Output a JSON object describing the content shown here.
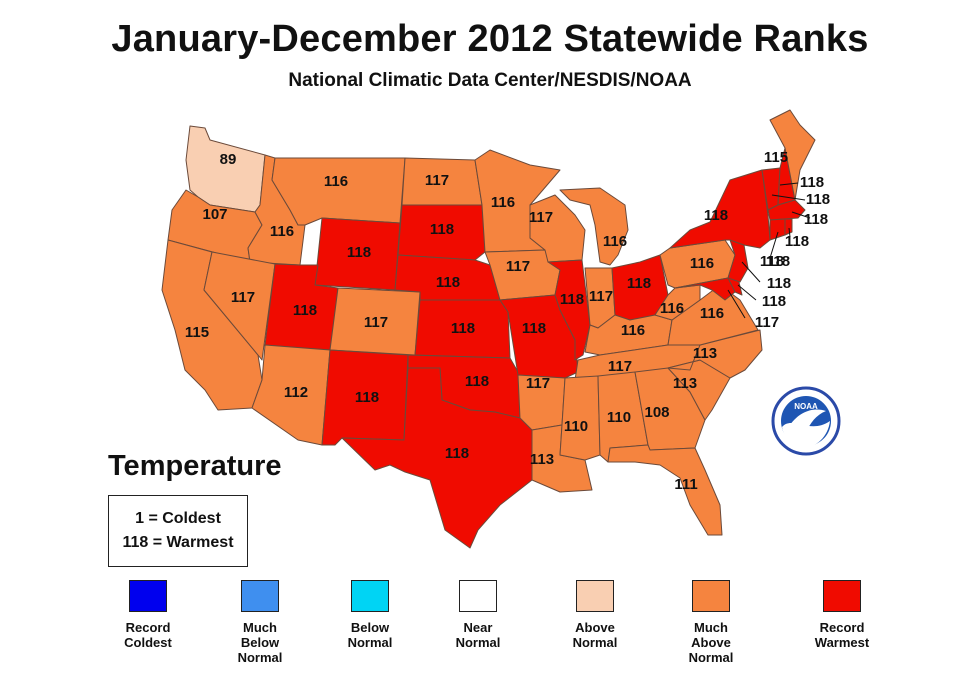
{
  "title": "January-December 2012 Statewide Ranks",
  "subtitle": "National Climatic Data Center/NESDIS/NOAA",
  "legend_title": "Temperature",
  "key": {
    "line1": "1 = Coldest",
    "line2": "118 = Warmest"
  },
  "colors": {
    "record_coldest": "#0000ee",
    "much_below_normal": "#3f8fef",
    "below_normal": "#00d4f4",
    "near_normal": "#ffffff",
    "above_normal": "#f9cfb2",
    "much_above_normal": "#f5843f",
    "record_warmest": "#f00b00"
  },
  "legend": [
    {
      "label": "Record\nColdest",
      "color": "#0000ee"
    },
    {
      "label": "Much\nBelow\nNormal",
      "color": "#3f8fef"
    },
    {
      "label": "Below\nNormal",
      "color": "#00d4f4"
    },
    {
      "label": "Near\nNormal",
      "color": "#ffffff"
    },
    {
      "label": "Above\nNormal",
      "color": "#f9cfb2"
    },
    {
      "label": "Much\nAbove\nNormal",
      "color": "#f5843f"
    },
    {
      "label": "Record\nWarmest",
      "color": "#f00b00"
    }
  ],
  "logo": {
    "text": "NOAA",
    "icon": "noaa-logo-icon"
  },
  "states": [
    {
      "id": "WA",
      "rank": "89",
      "category": "above_normal"
    },
    {
      "id": "OR",
      "rank": "107",
      "category": "much_above_normal"
    },
    {
      "id": "CA",
      "rank": "115",
      "category": "much_above_normal"
    },
    {
      "id": "ID",
      "rank": "116",
      "category": "much_above_normal"
    },
    {
      "id": "NV",
      "rank": "117",
      "category": "much_above_normal"
    },
    {
      "id": "MT",
      "rank": "116",
      "category": "much_above_normal"
    },
    {
      "id": "WY",
      "rank": "118",
      "category": "record_warmest"
    },
    {
      "id": "UT",
      "rank": "118",
      "category": "record_warmest"
    },
    {
      "id": "CO",
      "rank": "117",
      "category": "much_above_normal"
    },
    {
      "id": "AZ",
      "rank": "112",
      "category": "much_above_normal"
    },
    {
      "id": "NM",
      "rank": "118",
      "category": "record_warmest"
    },
    {
      "id": "ND",
      "rank": "117",
      "category": "much_above_normal"
    },
    {
      "id": "SD",
      "rank": "118",
      "category": "record_warmest"
    },
    {
      "id": "NE",
      "rank": "118",
      "category": "record_warmest"
    },
    {
      "id": "KS",
      "rank": "118",
      "category": "record_warmest"
    },
    {
      "id": "OK",
      "rank": "118",
      "category": "record_warmest"
    },
    {
      "id": "TX",
      "rank": "118",
      "category": "record_warmest"
    },
    {
      "id": "MN",
      "rank": "116",
      "category": "much_above_normal"
    },
    {
      "id": "IA",
      "rank": "117",
      "category": "much_above_normal"
    },
    {
      "id": "MO",
      "rank": "118",
      "category": "record_warmest"
    },
    {
      "id": "AR",
      "rank": "117",
      "category": "much_above_normal"
    },
    {
      "id": "LA",
      "rank": "113",
      "category": "much_above_normal"
    },
    {
      "id": "WI",
      "rank": "117",
      "category": "much_above_normal"
    },
    {
      "id": "IL",
      "rank": "118",
      "category": "record_warmest"
    },
    {
      "id": "MI",
      "rank": "116",
      "category": "much_above_normal"
    },
    {
      "id": "IN",
      "rank": "117",
      "category": "much_above_normal"
    },
    {
      "id": "OH",
      "rank": "118",
      "category": "record_warmest"
    },
    {
      "id": "KY",
      "rank": "116",
      "category": "much_above_normal"
    },
    {
      "id": "TN",
      "rank": "117",
      "category": "much_above_normal"
    },
    {
      "id": "MS",
      "rank": "110",
      "category": "much_above_normal"
    },
    {
      "id": "AL",
      "rank": "110",
      "category": "much_above_normal"
    },
    {
      "id": "GA",
      "rank": "108",
      "category": "much_above_normal"
    },
    {
      "id": "FL",
      "rank": "111",
      "category": "much_above_normal"
    },
    {
      "id": "SC",
      "rank": "113",
      "category": "much_above_normal"
    },
    {
      "id": "NC",
      "rank": "113",
      "category": "much_above_normal"
    },
    {
      "id": "VA",
      "rank": "116",
      "category": "much_above_normal"
    },
    {
      "id": "WV",
      "rank": "116",
      "category": "much_above_normal"
    },
    {
      "id": "PA",
      "rank": "116",
      "category": "much_above_normal"
    },
    {
      "id": "NY",
      "rank": "118",
      "category": "record_warmest"
    },
    {
      "id": "ME",
      "rank": "115",
      "category": "much_above_normal"
    },
    {
      "id": "NH",
      "rank": "118",
      "category": "record_warmest"
    },
    {
      "id": "VT",
      "rank": "118",
      "category": "record_warmest"
    },
    {
      "id": "MA",
      "rank": "118",
      "category": "record_warmest"
    },
    {
      "id": "RI",
      "rank": "118",
      "category": "record_warmest"
    },
    {
      "id": "CT",
      "rank": "118",
      "category": "record_warmest"
    },
    {
      "id": "NJ",
      "rank": "118",
      "category": "record_warmest"
    },
    {
      "id": "DE",
      "rank": "118",
      "category": "record_warmest"
    },
    {
      "id": "MD",
      "rank": "118",
      "category": "record_warmest"
    },
    {
      "id": "DC",
      "rank": "117",
      "category": "much_above_normal"
    }
  ]
}
